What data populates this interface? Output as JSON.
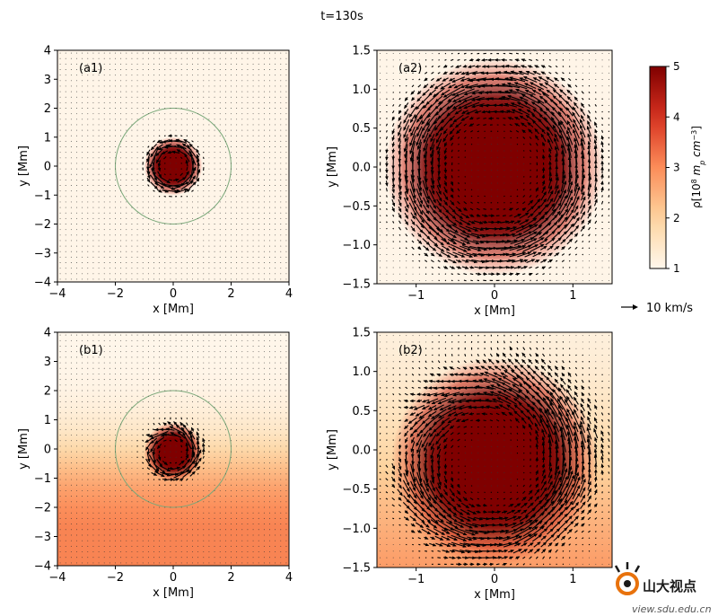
{
  "figure": {
    "title": "t=130s",
    "quiver_key_label": "10 km/s",
    "colorbar": {
      "label_prefix": "ρ[10",
      "label_exp": "8",
      "label_mid": " m",
      "label_sub": "p",
      "label_unit": " cm",
      "label_unit_exp": "−3",
      "label_suffix": "]",
      "range": [
        1,
        5
      ],
      "ticks": [
        "1",
        "2",
        "3",
        "4",
        "5"
      ],
      "colors": [
        "#fff7ec",
        "#fdd49e",
        "#fc8d59",
        "#d7301f",
        "#7f0000"
      ]
    },
    "watermark": {
      "brand": "山大视点",
      "url": "view.sdu.edu.cn"
    }
  },
  "chart_data": [
    {
      "id": "a1",
      "type": "heatmap",
      "panel_label": "(a1)",
      "xlabel": "x [Mm]",
      "ylabel": "y [Mm]",
      "xlim": [
        -4,
        4
      ],
      "ylim": [
        -4,
        4
      ],
      "xticks": [
        "−4",
        "−2",
        "0",
        "2",
        "4"
      ],
      "yticks": [
        "−4",
        "−3",
        "−2",
        "−1",
        "0",
        "1",
        "2",
        "3",
        "4"
      ],
      "density": {
        "background": 1.05,
        "core": 5,
        "core_radius": 0.65,
        "center": [
          0,
          0
        ],
        "stratified": false
      },
      "reference_circle_radius": 2.0,
      "flow": "vortex ring at r≈1 Mm"
    },
    {
      "id": "a2",
      "type": "heatmap",
      "panel_label": "(a2)",
      "xlabel": "x [Mm]",
      "ylabel": "y [Mm]",
      "xlim": [
        -1.5,
        1.5
      ],
      "ylim": [
        -1.5,
        1.5
      ],
      "xticks": [
        "−1",
        "0",
        "1"
      ],
      "yticks": [
        "−1.5",
        "−1.0",
        "−0.5",
        "0.0",
        "0.5",
        "1.0",
        "1.5"
      ],
      "density": {
        "background": 1.05,
        "core": 5,
        "core_radius": 0.9,
        "center": [
          0,
          0
        ],
        "stratified": false
      },
      "flow": "counter-clockwise rotation near r≈1 Mm"
    },
    {
      "id": "b1",
      "type": "heatmap",
      "panel_label": "(b1)",
      "xlabel": "x [Mm]",
      "ylabel": "y [Mm]",
      "xlim": [
        -4,
        4
      ],
      "ylim": [
        -4,
        4
      ],
      "xticks": [
        "−4",
        "−2",
        "0",
        "2",
        "4"
      ],
      "yticks": [
        "−4",
        "−3",
        "−2",
        "−1",
        "0",
        "1",
        "2",
        "3",
        "4"
      ],
      "density": {
        "background": 1.05,
        "core": 5,
        "core_radius": 0.65,
        "center": [
          0,
          -0.1
        ],
        "stratified": true
      },
      "reference_circle_radius": 2.0,
      "flow": "vortex with upward jets above core"
    },
    {
      "id": "b2",
      "type": "heatmap",
      "panel_label": "(b2)",
      "xlabel": "x [Mm]",
      "ylabel": "y [Mm]",
      "xlim": [
        -1.5,
        1.5
      ],
      "ylim": [
        -1.5,
        1.5
      ],
      "xticks": [
        "−1",
        "0",
        "1"
      ],
      "yticks": [
        "−1.5",
        "−1.0",
        "−0.5",
        "0.0",
        "0.5",
        "1.0",
        "1.5"
      ],
      "density": {
        "background": 1.05,
        "core": 5,
        "core_radius": 0.85,
        "center": [
          0,
          -0.15
        ],
        "stratified": true
      },
      "flow": "vortex with upward flow above core"
    }
  ]
}
